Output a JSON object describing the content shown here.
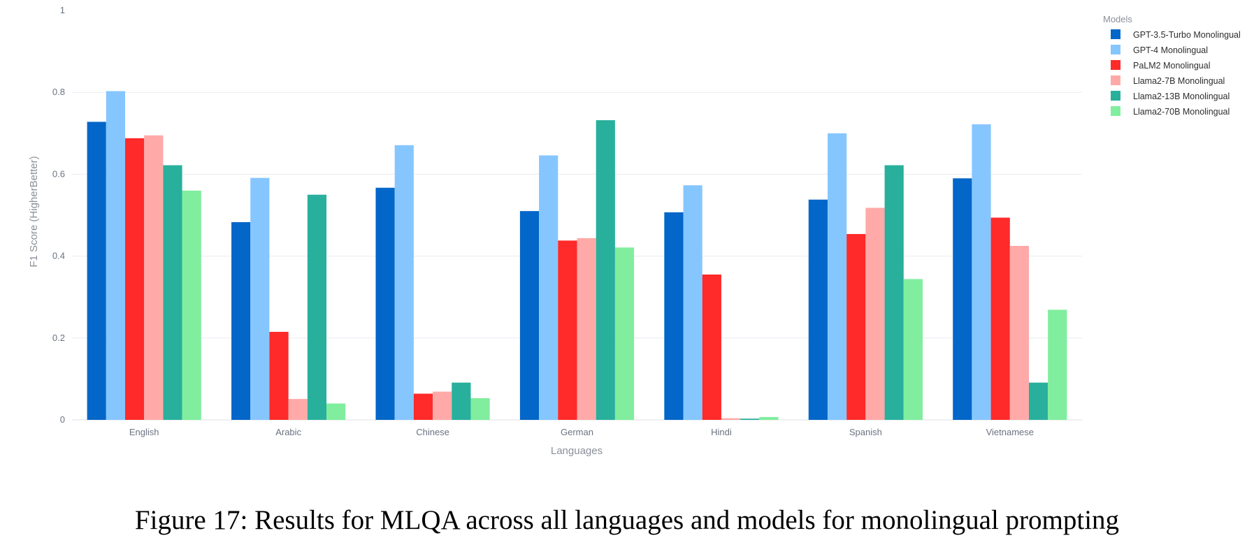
{
  "caption": "Figure 17: Results for MLQA across all languages and models for monolingual prompting",
  "chart_data": {
    "type": "bar",
    "title": "",
    "xlabel": "Languages",
    "ylabel": "F1 Score (HigherBetter)",
    "ylim": [
      0,
      1
    ],
    "yticks": [
      {
        "value": 0,
        "label": "0"
      },
      {
        "value": 0.2,
        "label": "0.2"
      },
      {
        "value": 0.4,
        "label": "0.4"
      },
      {
        "value": 0.6,
        "label": "0.6"
      },
      {
        "value": 0.8,
        "label": "0.8"
      },
      {
        "value": 1,
        "label": "1"
      }
    ],
    "grid": true,
    "legend_title": "Models",
    "legend_position": "top-right",
    "categories": [
      "English",
      "Arabic",
      "Chinese",
      "German",
      "Hindi",
      "Spanish",
      "Vietnamese"
    ],
    "series": [
      {
        "name": "GPT-3.5-Turbo Monolingual",
        "color": "#0366c9",
        "values": [
          0.728,
          0.483,
          0.567,
          0.51,
          0.507,
          0.538,
          0.59
        ]
      },
      {
        "name": "GPT-4 Monolingual",
        "color": "#86c6ff",
        "values": [
          0.803,
          0.591,
          0.671,
          0.646,
          0.573,
          0.7,
          0.722
        ]
      },
      {
        "name": "PaLM2 Monolingual",
        "color": "#ff2a2a",
        "values": [
          0.688,
          0.215,
          0.064,
          0.438,
          0.355,
          0.454,
          0.494
        ]
      },
      {
        "name": "Llama2-7B Monolingual",
        "color": "#ffaaa8",
        "values": [
          0.695,
          0.051,
          0.069,
          0.444,
          0.004,
          0.518,
          0.425
        ]
      },
      {
        "name": "Llama2-13B Monolingual",
        "color": "#28b09c",
        "values": [
          0.622,
          0.55,
          0.091,
          0.732,
          0.003,
          0.622,
          0.091
        ]
      },
      {
        "name": "Llama2-70B Monolingual",
        "color": "#80ee9e",
        "values": [
          0.56,
          0.04,
          0.053,
          0.421,
          0.007,
          0.344,
          0.269
        ]
      }
    ]
  }
}
